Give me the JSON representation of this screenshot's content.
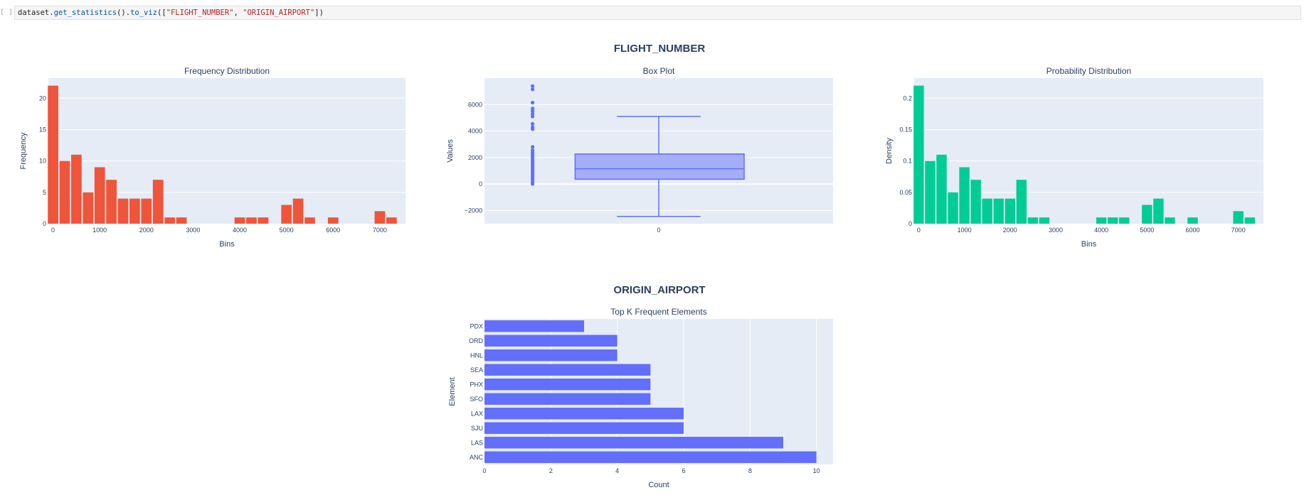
{
  "notebook": {
    "prompt": "[ ]:",
    "code": {
      "p1": "dataset.",
      "fn1": "get_statistics",
      "p2": "().",
      "fn2": "to_viz",
      "p3": "([",
      "s1": "\"FLIGHT_NUMBER\"",
      "p4": ", ",
      "s2": "\"ORIGIN_AIRPORT\"",
      "p5": "])"
    }
  },
  "sections": {
    "flight_number_title": "FLIGHT_NUMBER",
    "origin_airport_title": "ORIGIN_AIRPORT"
  },
  "colors": {
    "plot_bg": "#e5ecf6",
    "frequency_bar": "#ef553b",
    "probability_bar": "#00cc96",
    "box": "#636efa",
    "topk_bar": "#636efa",
    "title_text": "#2a3f5f"
  },
  "chart_data": [
    {
      "type": "bar",
      "title": "Frequency Distribution",
      "xlabel": "Bins",
      "ylabel": "Frequency",
      "xlim": [
        -100,
        7550
      ],
      "ylim": [
        0,
        23.2
      ],
      "xticks": [
        0,
        1000,
        2000,
        3000,
        4000,
        5000,
        6000,
        7000
      ],
      "yticks": [
        0,
        5,
        10,
        15,
        20
      ],
      "bin_width": 250,
      "x": [
        0,
        250,
        500,
        750,
        1000,
        1250,
        1500,
        1750,
        2000,
        2250,
        2500,
        2750,
        3000,
        3250,
        3500,
        3750,
        4000,
        4250,
        4500,
        4750,
        5000,
        5250,
        5500,
        5750,
        6000,
        6250,
        6500,
        6750,
        7000,
        7250
      ],
      "values": [
        22,
        10,
        11,
        5,
        9,
        7,
        4,
        4,
        4,
        7,
        1,
        1,
        0,
        0,
        0,
        0,
        1,
        1,
        1,
        0,
        3,
        4,
        1,
        0,
        1,
        0,
        0,
        0,
        2,
        1
      ],
      "grid": true,
      "legend": "none"
    },
    {
      "type": "box",
      "title": "Box Plot",
      "xlabel": "",
      "ylabel": "Values",
      "xticks": [
        "0"
      ],
      "ylim": [
        -3000,
        8000
      ],
      "yticks": [
        -2000,
        0,
        2000,
        4000,
        6000
      ],
      "q1": 360,
      "median": 1150,
      "q3": 2270,
      "lower_fence": -2450,
      "upper_fence": 5100,
      "points": [
        7400,
        7150,
        6150,
        5700,
        5500,
        5300,
        5100,
        4550,
        4300,
        4150,
        2800,
        2550,
        2400,
        2250,
        2100,
        1950,
        1800,
        1650,
        1500,
        1350,
        1200,
        1050,
        900,
        750,
        600,
        450,
        300,
        150,
        0
      ],
      "grid": true,
      "legend": "none"
    },
    {
      "type": "bar",
      "title": "Probability Distribution",
      "xlabel": "Bins",
      "ylabel": "Density",
      "xlim": [
        -100,
        7550
      ],
      "ylim": [
        0,
        0.232
      ],
      "xticks": [
        0,
        1000,
        2000,
        3000,
        4000,
        5000,
        6000,
        7000
      ],
      "yticks": [
        0,
        0.05,
        0.1,
        0.15,
        0.2
      ],
      "ytick_labels": [
        "0",
        "0.05",
        "0.1",
        "0.15",
        "0.2"
      ],
      "bin_width": 250,
      "x": [
        0,
        250,
        500,
        750,
        1000,
        1250,
        1500,
        1750,
        2000,
        2250,
        2500,
        2750,
        3000,
        3250,
        3500,
        3750,
        4000,
        4250,
        4500,
        4750,
        5000,
        5250,
        5500,
        5750,
        6000,
        6250,
        6500,
        6750,
        7000,
        7250
      ],
      "values": [
        0.22,
        0.1,
        0.11,
        0.05,
        0.09,
        0.07,
        0.04,
        0.04,
        0.04,
        0.07,
        0.01,
        0.01,
        0,
        0,
        0,
        0,
        0.01,
        0.01,
        0.01,
        0,
        0.03,
        0.04,
        0.01,
        0,
        0.01,
        0,
        0,
        0,
        0.02,
        0.01
      ],
      "grid": true,
      "legend": "none"
    },
    {
      "type": "bar",
      "orientation": "horizontal",
      "title": "Top K Frequent Elements",
      "xlabel": "Count",
      "ylabel": "Element",
      "xlim": [
        0,
        10.5
      ],
      "xticks": [
        0,
        2,
        4,
        6,
        8,
        10
      ],
      "categories": [
        "PDX",
        "ORD",
        "HNL",
        "SEA",
        "PHX",
        "SFO",
        "LAX",
        "SJU",
        "LAS",
        "ANC"
      ],
      "values": [
        3,
        4,
        4,
        5,
        5,
        5,
        6,
        6,
        9,
        10
      ],
      "grid": true,
      "legend": "none"
    }
  ]
}
